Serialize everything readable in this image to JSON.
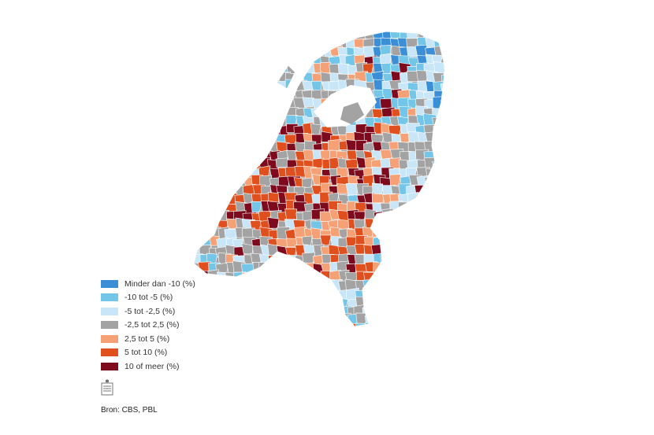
{
  "legend": [
    {
      "label": "Minder dan -10 (%)",
      "color": "#3a8fd6"
    },
    {
      "label": "-10 tot -5 (%)",
      "color": "#74c6e8"
    },
    {
      "label": "-5 tot -2,5 (%)",
      "color": "#c8e6f7"
    },
    {
      "label": "-2,5 tot 2,5 (%)",
      "color": "#a3a3a3"
    },
    {
      "label": "2,5 tot 5 (%)",
      "color": "#f5a175"
    },
    {
      "label": "5 tot 10 (%)",
      "color": "#e0501e"
    },
    {
      "label": "10 of meer (%)",
      "color": "#7e0a1e"
    }
  ],
  "logo_icon": "government-logo-icon",
  "source": "Bron: CBS, PBL"
}
